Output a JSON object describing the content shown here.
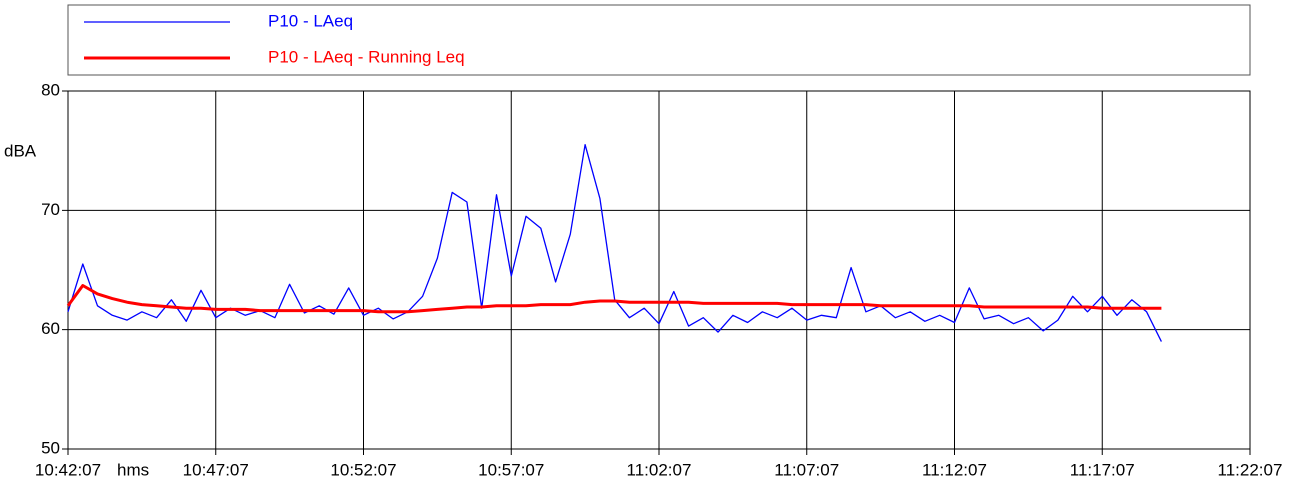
{
  "chart_data": {
    "type": "line",
    "y_label": "dBA",
    "x_label": "hms",
    "x": [
      "10:42:07",
      "10:42:37",
      "10:43:07",
      "10:43:37",
      "10:44:07",
      "10:44:37",
      "10:45:07",
      "10:45:37",
      "10:46:07",
      "10:46:37",
      "10:47:07",
      "10:47:37",
      "10:48:07",
      "10:48:37",
      "10:49:07",
      "10:49:37",
      "10:50:07",
      "10:50:37",
      "10:51:07",
      "10:51:37",
      "10:52:07",
      "10:52:37",
      "10:53:07",
      "10:53:37",
      "10:54:07",
      "10:54:37",
      "10:55:07",
      "10:55:37",
      "10:56:07",
      "10:56:37",
      "10:57:07",
      "10:57:37",
      "10:58:07",
      "10:58:37",
      "10:59:07",
      "10:59:37",
      "11:00:07",
      "11:00:37",
      "11:01:07",
      "11:01:37",
      "11:02:07",
      "11:02:37",
      "11:03:07",
      "11:03:37",
      "11:04:07",
      "11:04:37",
      "11:05:07",
      "11:05:37",
      "11:06:07",
      "11:06:37",
      "11:07:07",
      "11:07:37",
      "11:08:07",
      "11:08:37",
      "11:09:07",
      "11:09:37",
      "11:10:07",
      "11:10:37",
      "11:11:07",
      "11:11:37",
      "11:12:07",
      "11:12:37",
      "11:13:07",
      "11:13:37",
      "11:14:07",
      "11:14:37",
      "11:15:07",
      "11:15:37",
      "11:16:07",
      "11:16:37",
      "11:17:07",
      "11:17:37",
      "11:18:07",
      "11:18:37",
      "11:19:07"
    ],
    "series": [
      {
        "name": "P10 - LAeq",
        "color": "#0000ff",
        "values": [
          61.5,
          65.5,
          62.0,
          61.2,
          60.8,
          61.5,
          61.0,
          62.5,
          60.7,
          63.3,
          61.0,
          61.8,
          61.2,
          61.6,
          61.0,
          63.8,
          61.4,
          62.0,
          61.3,
          63.5,
          61.2,
          61.8,
          60.9,
          61.5,
          62.8,
          66.0,
          71.5,
          70.7,
          61.8,
          71.3,
          64.5,
          69.5,
          68.5,
          64.0,
          68.0,
          75.5,
          71.0,
          62.5,
          61.0,
          61.8,
          60.5,
          63.2,
          60.3,
          61.0,
          59.8,
          61.2,
          60.6,
          61.5,
          61.0,
          61.8,
          60.8,
          61.2,
          61.0,
          65.2,
          61.5,
          62.0,
          61.0,
          61.5,
          60.7,
          61.2,
          60.6,
          63.5,
          60.9,
          61.2,
          60.5,
          61.0,
          59.9,
          60.8,
          62.8,
          61.5,
          62.8,
          61.2,
          62.5,
          61.5,
          59.0
        ]
      },
      {
        "name": "P10 - LAeq - Running Leq",
        "color": "#ff0000",
        "values": [
          62.0,
          63.7,
          63.0,
          62.6,
          62.3,
          62.1,
          62.0,
          61.9,
          61.8,
          61.8,
          61.7,
          61.7,
          61.7,
          61.6,
          61.6,
          61.6,
          61.6,
          61.6,
          61.6,
          61.6,
          61.6,
          61.5,
          61.5,
          61.5,
          61.6,
          61.7,
          61.8,
          61.9,
          61.9,
          62.0,
          62.0,
          62.0,
          62.1,
          62.1,
          62.1,
          62.3,
          62.4,
          62.4,
          62.3,
          62.3,
          62.3,
          62.3,
          62.3,
          62.2,
          62.2,
          62.2,
          62.2,
          62.2,
          62.2,
          62.1,
          62.1,
          62.1,
          62.1,
          62.1,
          62.1,
          62.0,
          62.0,
          62.0,
          62.0,
          62.0,
          62.0,
          62.0,
          61.9,
          61.9,
          61.9,
          61.9,
          61.9,
          61.9,
          61.9,
          61.9,
          61.8,
          61.8,
          61.8,
          61.8,
          61.8
        ]
      }
    ],
    "xlim": [
      "10:42:07",
      "11:22:07"
    ],
    "xticks": [
      "10:42:07",
      "10:47:07",
      "10:52:07",
      "10:57:07",
      "11:02:07",
      "11:07:07",
      "11:12:07",
      "11:17:07",
      "11:22:07"
    ],
    "ylim": [
      50,
      80
    ],
    "yticks": [
      50,
      60,
      70,
      80
    ],
    "grid": true
  }
}
